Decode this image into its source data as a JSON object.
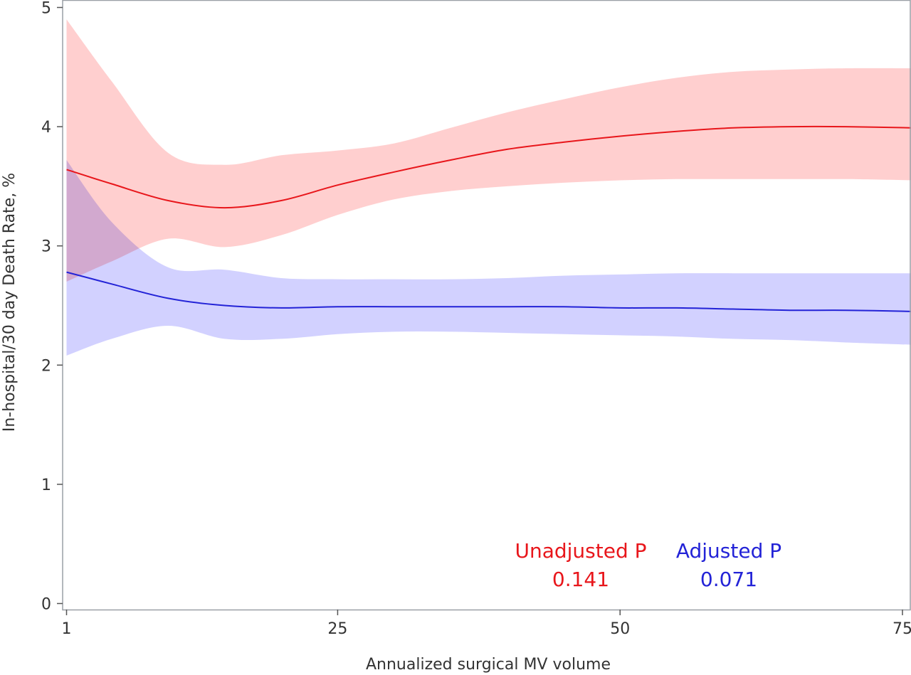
{
  "chart_data": {
    "type": "line",
    "xlabel": "Annualized surgical MV volume",
    "ylabel": "In-hospital/30 day Death Rate, %",
    "xlim": [
      1,
      76
    ],
    "ylim": [
      0,
      5
    ],
    "x_ticks": [
      1,
      25,
      50,
      75
    ],
    "y_ticks": [
      0,
      1,
      2,
      3,
      4,
      5
    ],
    "grid": false,
    "legend": "none",
    "series": [
      {
        "key": "unadjusted",
        "color": "#e8161b",
        "band_color": "#ffc8c8",
        "x": [
          1,
          5,
          10,
          15,
          20,
          25,
          30,
          35,
          40,
          45,
          50,
          55,
          60,
          65,
          70,
          76
        ],
        "y": [
          3.64,
          3.52,
          3.38,
          3.32,
          3.38,
          3.51,
          3.62,
          3.72,
          3.81,
          3.87,
          3.92,
          3.96,
          3.99,
          4.0,
          4.0,
          3.99
        ],
        "lower": [
          2.7,
          2.87,
          3.06,
          2.99,
          3.09,
          3.26,
          3.39,
          3.46,
          3.5,
          3.53,
          3.55,
          3.56,
          3.56,
          3.56,
          3.56,
          3.55
        ],
        "upper": [
          4.9,
          4.38,
          3.78,
          3.68,
          3.76,
          3.8,
          3.86,
          3.99,
          4.12,
          4.23,
          4.33,
          4.41,
          4.46,
          4.48,
          4.49,
          4.49
        ]
      },
      {
        "key": "adjusted",
        "color": "#2323d7",
        "band_color": "#cccbff",
        "x": [
          1,
          5,
          10,
          15,
          20,
          25,
          30,
          35,
          40,
          45,
          50,
          55,
          60,
          65,
          70,
          76
        ],
        "y": [
          2.78,
          2.68,
          2.56,
          2.5,
          2.48,
          2.49,
          2.49,
          2.49,
          2.49,
          2.49,
          2.48,
          2.48,
          2.47,
          2.46,
          2.46,
          2.45
        ],
        "lower": [
          2.08,
          2.22,
          2.33,
          2.22,
          2.22,
          2.26,
          2.28,
          2.28,
          2.27,
          2.26,
          2.25,
          2.24,
          2.22,
          2.21,
          2.19,
          2.17
        ],
        "upper": [
          3.72,
          3.2,
          2.82,
          2.8,
          2.73,
          2.72,
          2.72,
          2.72,
          2.73,
          2.75,
          2.76,
          2.77,
          2.77,
          2.77,
          2.77,
          2.77
        ]
      }
    ],
    "annotations": [
      {
        "key": "unadjusted",
        "label": "Unadjusted P",
        "value": "0.141",
        "color": "#e8161b"
      },
      {
        "key": "adjusted",
        "label": "Adjusted P",
        "value": "0.071",
        "color": "#2323d7"
      }
    ]
  }
}
